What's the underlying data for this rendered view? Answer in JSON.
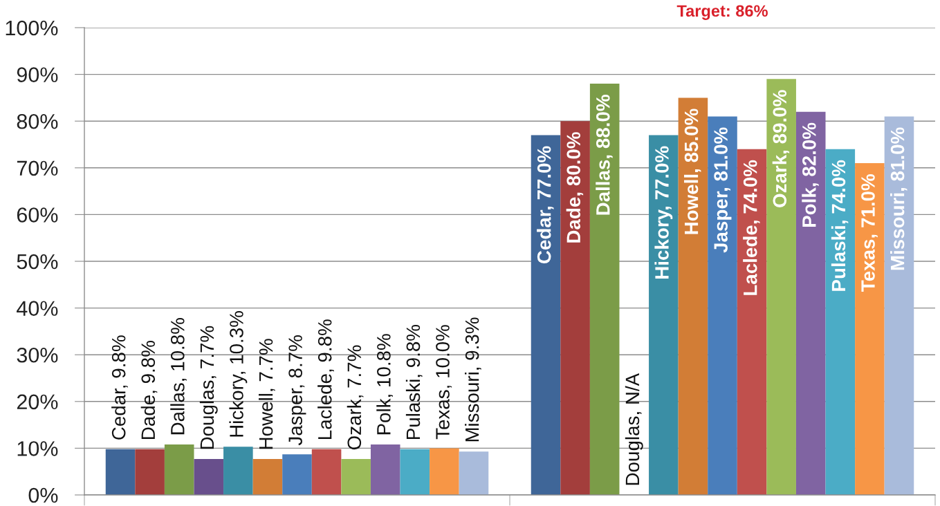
{
  "chart_data": {
    "type": "bar",
    "categories": [
      null,
      null
    ],
    "series": [
      {
        "color": "#3F6698",
        "values": [
          9.8,
          77.0
        ],
        "value_labels": [
          "Cedar, 9.8%",
          "Cedar, 77.0%"
        ]
      },
      {
        "color": "#A33E3C",
        "values": [
          9.8,
          80.0
        ],
        "value_labels": [
          "Dade, 9.8%",
          "Dade, 80.0%"
        ]
      },
      {
        "color": "#7B9C48",
        "values": [
          10.8,
          88.0
        ],
        "value_labels": [
          "Dallas, 10.8%",
          "Dallas, 88.0%"
        ]
      },
      {
        "color": "#684F8C",
        "values": [
          7.7,
          null
        ],
        "value_labels": [
          "Douglas, 7.7%",
          "Douglas, N/A"
        ]
      },
      {
        "color": "#3A8EA5",
        "values": [
          10.3,
          77.0
        ],
        "value_labels": [
          "Hickory, 10.3%",
          "Hickory, 77.0%"
        ]
      },
      {
        "color": "#D27D36",
        "values": [
          7.7,
          85.0
        ],
        "value_labels": [
          "Howell, 7.7%",
          "Howell, 85.0%"
        ]
      },
      {
        "color": "#4A7EBB",
        "values": [
          8.7,
          81.0
        ],
        "value_labels": [
          "Jasper, 8.7%",
          "Jasper, 81.0%"
        ]
      },
      {
        "color": "#C0504D",
        "values": [
          9.8,
          74.0
        ],
        "value_labels": [
          "Laclede, 9.8%",
          "Laclede, 74.0%"
        ]
      },
      {
        "color": "#9BBB59",
        "values": [
          7.7,
          89.0
        ],
        "value_labels": [
          "Ozark, 7.7%",
          "Ozark, 89.0%"
        ]
      },
      {
        "color": "#8064A2",
        "values": [
          10.8,
          82.0
        ],
        "value_labels": [
          "Polk, 10.8%",
          "Polk, 82.0%"
        ]
      },
      {
        "color": "#4BACC6",
        "values": [
          9.8,
          74.0
        ],
        "value_labels": [
          "Pulaski, 9.8%",
          "Pulaski, 74.0%"
        ]
      },
      {
        "color": "#F79646",
        "values": [
          10.0,
          71.0
        ],
        "value_labels": [
          "Texas, 10.0%",
          "Texas, 71.0%"
        ]
      },
      {
        "color": "#A9BBDB",
        "values": [
          9.3,
          81.0
        ],
        "value_labels": [
          "Missouri, 9.3%",
          "Missouri, 81.0%"
        ]
      }
    ],
    "ylim": [
      0,
      100
    ],
    "yticks": [
      {
        "value": 0,
        "label": "0%"
      },
      {
        "value": 10,
        "label": "10%"
      },
      {
        "value": 20,
        "label": "20%"
      },
      {
        "value": 30,
        "label": "30%"
      },
      {
        "value": 40,
        "label": "40%"
      },
      {
        "value": 50,
        "label": "50%"
      },
      {
        "value": 60,
        "label": "60%"
      },
      {
        "value": 70,
        "label": "70%"
      },
      {
        "value": 80,
        "label": "80%"
      },
      {
        "value": 90,
        "label": "90%"
      },
      {
        "value": 100,
        "label": "100%"
      }
    ],
    "grid": "y",
    "legend": false,
    "annotations": [
      "Target: 86%"
    ]
  }
}
